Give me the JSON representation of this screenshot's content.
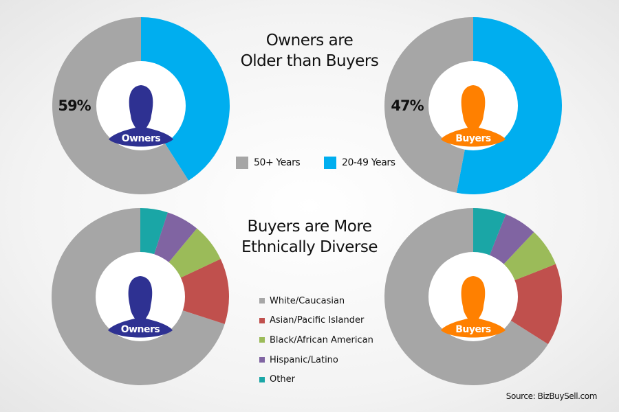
{
  "titles": {
    "age": [
      "Owners are",
      "Older than Buyers"
    ],
    "ethnicity": [
      "Buyers are More",
      "Ethnically Diverse"
    ]
  },
  "source": "Source: BizBuySell.com",
  "figures": {
    "owners_label": "Owners",
    "buyers_label": "Buyers",
    "owners_color": "#2e3192",
    "buyers_color": "#ff8000"
  },
  "legends": {
    "age": [
      {
        "label": "50+ Years",
        "color": "#a6a6a6"
      },
      {
        "label": "20-49 Years",
        "color": "#00aeef"
      }
    ],
    "ethnicity": [
      {
        "label": "White/Caucasian",
        "color": "#a6a6a6"
      },
      {
        "label": "Asian/Pacific Islander",
        "color": "#c0504d"
      },
      {
        "label": "Black/African American",
        "color": "#9bbb59"
      },
      {
        "label": "Hispanic/Latino",
        "color": "#8064a2"
      },
      {
        "label": "Other",
        "color": "#1aa6a6"
      }
    ]
  },
  "chart_data": [
    {
      "type": "pie",
      "title": "Owners are Older than Buyers",
      "center_label": "Owners",
      "categories": [
        "20-49 Years",
        "50+ Years"
      ],
      "values": [
        41,
        59
      ],
      "colors": [
        "#00aeef",
        "#a6a6a6"
      ],
      "data_labels": {
        "50+ Years": "59%"
      }
    },
    {
      "type": "pie",
      "title": "Owners are Older than Buyers",
      "center_label": "Buyers",
      "categories": [
        "20-49 Years",
        "50+ Years"
      ],
      "values": [
        53,
        47
      ],
      "colors": [
        "#00aeef",
        "#a6a6a6"
      ],
      "data_labels": {
        "50+ Years": "47%"
      }
    },
    {
      "type": "pie",
      "title": "Buyers are More Ethnically Diverse",
      "center_label": "Owners",
      "categories": [
        "White/Caucasian",
        "Asian/Pacific Islander",
        "Black/African American",
        "Hispanic/Latino",
        "Other"
      ],
      "values": [
        70,
        12,
        7,
        6,
        5
      ],
      "colors": [
        "#a6a6a6",
        "#c0504d",
        "#9bbb59",
        "#8064a2",
        "#1aa6a6"
      ]
    },
    {
      "type": "pie",
      "title": "Buyers are More Ethnically Diverse",
      "center_label": "Buyers",
      "categories": [
        "White/Caucasian",
        "Asian/Pacific Islander",
        "Black/African American",
        "Hispanic/Latino",
        "Other"
      ],
      "values": [
        66,
        15,
        7,
        6,
        6
      ],
      "colors": [
        "#a6a6a6",
        "#c0504d",
        "#9bbb59",
        "#8064a2",
        "#1aa6a6"
      ]
    }
  ]
}
